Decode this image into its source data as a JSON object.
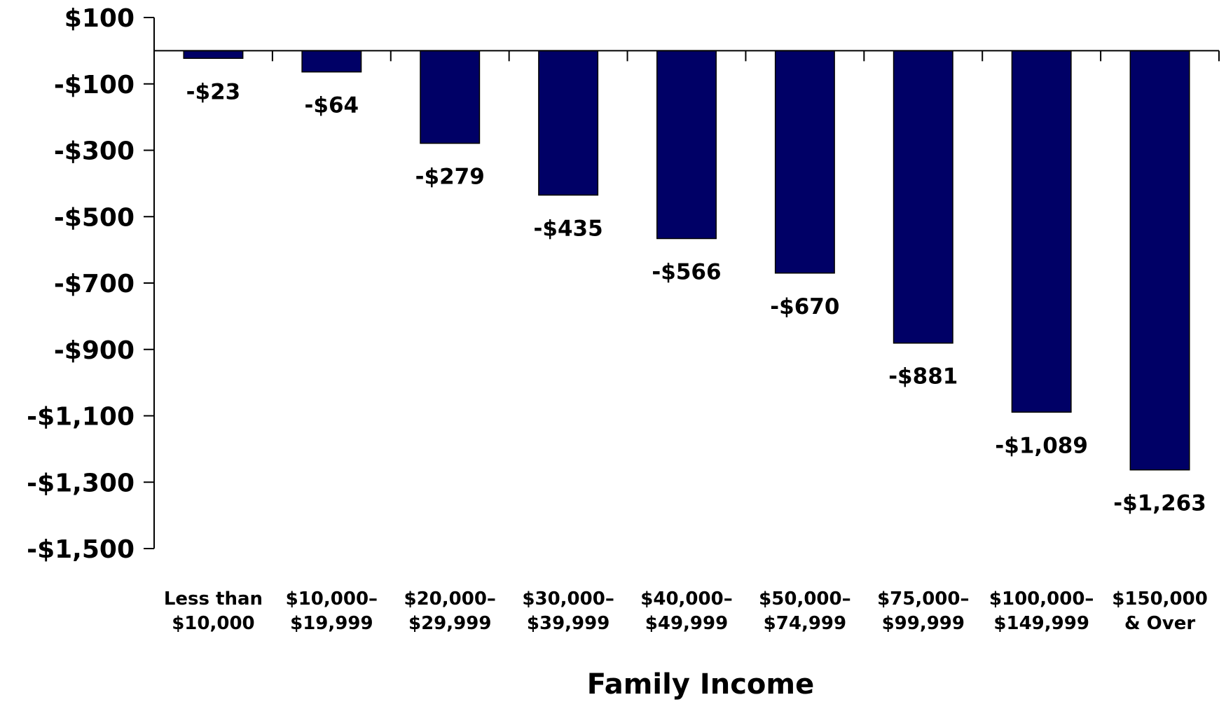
{
  "chart_data": {
    "type": "bar",
    "title": "",
    "xlabel": "Family Income",
    "ylabel": "",
    "categories": [
      [
        "Less than",
        "$10,000"
      ],
      [
        "$10,000–",
        "$19,999"
      ],
      [
        "$20,000–",
        "$29,999"
      ],
      [
        "$30,000–",
        "$39,999"
      ],
      [
        "$40,000–",
        "$49,999"
      ],
      [
        "$50,000–",
        "$74,999"
      ],
      [
        "$75,000–",
        "$99,999"
      ],
      [
        "$100,000–",
        "$149,999"
      ],
      [
        "$150,000",
        "& Over"
      ]
    ],
    "values": [
      -23,
      -64,
      -279,
      -435,
      -566,
      -670,
      -881,
      -1089,
      -1263
    ],
    "value_labels": [
      "-$23",
      "-$64",
      "-$279",
      "-$435",
      "-$566",
      "-$670",
      "-$881",
      "-$1,089",
      "-$1,263"
    ],
    "ylim": [
      -1500,
      100
    ],
    "yticks": [
      100,
      -100,
      -300,
      -500,
      -700,
      -900,
      -1100,
      -1300,
      -1500
    ],
    "ytick_labels": [
      "$100",
      "-$100",
      "-$300",
      "-$500",
      "-$700",
      "-$900",
      "-$1,100",
      "-$1,300",
      "-$1,500"
    ],
    "grid": false,
    "legend": "none",
    "colors": {
      "bar": "#000066",
      "axis": "#000000"
    }
  }
}
